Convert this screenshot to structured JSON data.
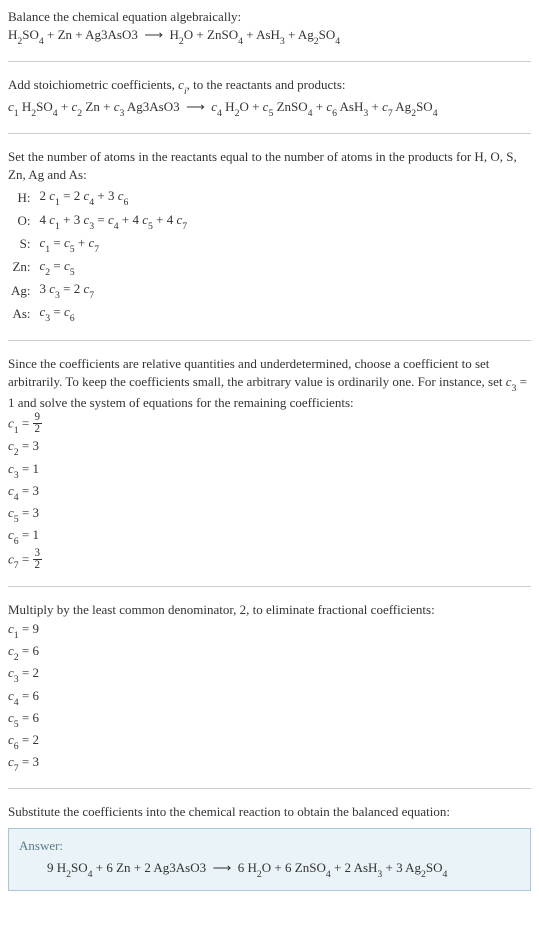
{
  "intro": {
    "line1": "Balance the chemical equation algebraically:",
    "eq_plain": "H₂SO₄ + Zn + Ag3AsO3  ⟶  H₂O + ZnSO₄ + AsH₃ + Ag₂SO₄"
  },
  "step_add": {
    "text_a": "Add stoichiometric coefficients, ",
    "ci": "c",
    "ci_sub": "i",
    "text_b": ", to the reactants and products:"
  },
  "eq_coeffs": {
    "terms": [
      {
        "c": "c",
        "i": "1",
        "f": "H",
        "s1": "2",
        "m": "SO",
        "s2": "4"
      },
      {
        "c": "c",
        "i": "2",
        "f": "Zn"
      },
      {
        "c": "c",
        "i": "3",
        "f": "Ag3AsO3"
      }
    ],
    "rhs": [
      {
        "c": "c",
        "i": "4",
        "f": "H",
        "s1": "2",
        "m": "O"
      },
      {
        "c": "c",
        "i": "5",
        "f": "ZnSO",
        "s1": "4"
      },
      {
        "c": "c",
        "i": "6",
        "f": "AsH",
        "s1": "3"
      },
      {
        "c": "c",
        "i": "7",
        "f": "Ag",
        "s1": "2",
        "m": "SO",
        "s2": "4"
      }
    ]
  },
  "step_set": {
    "line1": "Set the number of atoms in the reactants equal to the number of atoms in the products for H, O, S, Zn, Ag and As:"
  },
  "atoms": [
    {
      "el": "H:",
      "eq": "2 c₁ = 2 c₄ + 3 c₆"
    },
    {
      "el": "O:",
      "eq": "4 c₁ + 3 c₃ = c₄ + 4 c₅ + 4 c₇"
    },
    {
      "el": "S:",
      "eq": "c₁ = c₅ + c₇"
    },
    {
      "el": "Zn:",
      "eq": "c₂ = c₅"
    },
    {
      "el": "Ag:",
      "eq": "3 c₃ = 2 c₇"
    },
    {
      "el": "As:",
      "eq": "c₃ = c₆"
    }
  ],
  "step_since": {
    "text_a": "Since the coefficients are relative quantities and underdetermined, choose a coefficient to set arbitrarily. To keep the coefficients small, the arbitrary value is ordinarily one. For instance, set ",
    "c3": "c₃ = 1",
    "text_b": " and solve the system of equations for the remaining coefficients:"
  },
  "coefs_frac": [
    {
      "lhs": "c₁ = ",
      "num": "9",
      "den": "2"
    },
    {
      "lhs": "c₂ = 3"
    },
    {
      "lhs": "c₃ = 1"
    },
    {
      "lhs": "c₄ = 3"
    },
    {
      "lhs": "c₅ = 3"
    },
    {
      "lhs": "c₆ = 1"
    },
    {
      "lhs": "c₇ = ",
      "num": "3",
      "den": "2"
    }
  ],
  "step_mult": "Multiply by the least common denominator, 2, to eliminate fractional coefficients:",
  "coefs_int": [
    "c₁ = 9",
    "c₂ = 6",
    "c₃ = 2",
    "c₄ = 6",
    "c₅ = 6",
    "c₆ = 2",
    "c₇ = 3"
  ],
  "step_sub": "Substitute the coefficients into the chemical reaction to obtain the balanced equation:",
  "answer": {
    "label": "Answer:",
    "eq": "9 H₂SO₄ + 6 Zn + 2 Ag3AsO3  ⟶  6 H₂O + 6 ZnSO₄ + 2 AsH₃ + 3 Ag₂SO₄"
  },
  "style": {
    "answer_bg": "#eaf3f8",
    "answer_border": "#a8c8d8",
    "answer_label_color": "#5a7a8a",
    "hr_color": "#cccccc",
    "text_color": "#333333",
    "font_size_base": 13
  }
}
